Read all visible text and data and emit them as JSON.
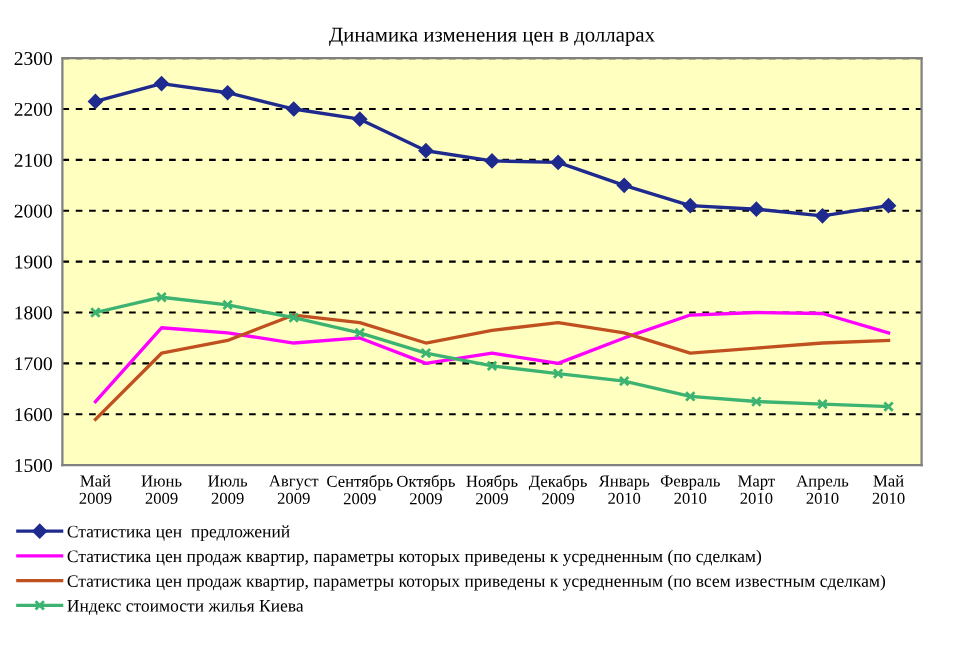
{
  "chart_data": {
    "type": "line",
    "title": "Динамика изменения цен в долларах",
    "categories": [
      "Май\n2009",
      "Июнь\n2009",
      "Июль\n2009",
      "Август\n2009",
      "Сентябрь\n2009",
      "Октябрь\n2009",
      "Ноябрь\n2009",
      "Декабрь\n2009",
      "Январь\n2010",
      "Февраль\n2010",
      "Март\n2010",
      "Апрель\n2010",
      "Май\n2010"
    ],
    "series": [
      {
        "name": "Статистика цен  предложений",
        "color": "#1f2a8f",
        "marker": "diamond",
        "values": [
          2215,
          2250,
          2232,
          2200,
          2180,
          2118,
          2098,
          2095,
          2050,
          2010,
          2003,
          1990,
          2010
        ]
      },
      {
        "name": "Статистика цен продаж квартир, параметры которых приведены к усредненным (по сделкам)",
        "color": "#ff00ff",
        "marker": "none",
        "values": [
          1625,
          1770,
          1760,
          1740,
          1750,
          1700,
          1720,
          1700,
          1750,
          1795,
          1800,
          1798,
          1760
        ]
      },
      {
        "name": "Статистика цен продаж квартир, параметры которых приведены к усредненным (по всем известным сделкам)",
        "color": "#c0501f",
        "marker": "none",
        "values": [
          1590,
          1720,
          1745,
          1795,
          1780,
          1740,
          1765,
          1780,
          1760,
          1720,
          1730,
          1740,
          1745
        ]
      },
      {
        "name": "Индекс стоимости жилья Киева",
        "color": "#3cb371",
        "marker": "cross",
        "values": [
          1800,
          1830,
          1815,
          1790,
          1760,
          1720,
          1695,
          1680,
          1665,
          1635,
          1625,
          1620,
          1615
        ]
      }
    ],
    "ylim": [
      1500,
      2300
    ],
    "yticks": [
      1500,
      1600,
      1700,
      1800,
      1900,
      2000,
      2100,
      2200,
      2300
    ],
    "grid": "y",
    "legend": "bottom",
    "line_style": "solid"
  }
}
